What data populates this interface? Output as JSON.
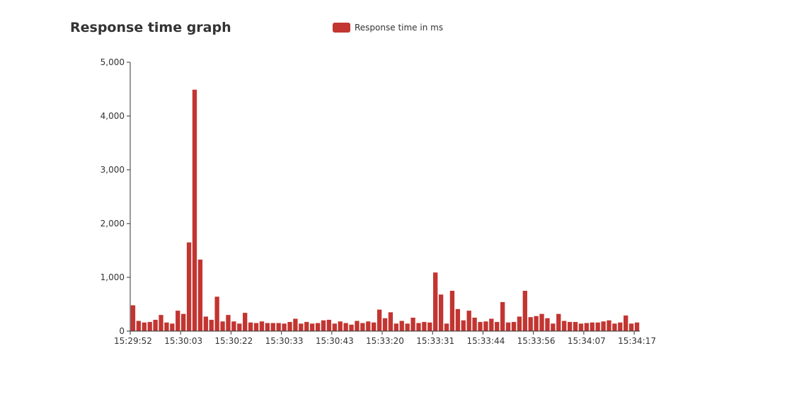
{
  "chart_data": {
    "type": "bar",
    "title": "Response time graph",
    "legend": {
      "placement": "top-center",
      "entries": [
        "Response time in ms"
      ]
    },
    "series": [
      {
        "name": "Response time in ms",
        "color": "#c23531",
        "values": [
          480,
          190,
          160,
          170,
          210,
          300,
          160,
          140,
          380,
          320,
          1650,
          4490,
          1330,
          270,
          210,
          640,
          180,
          300,
          180,
          140,
          340,
          160,
          150,
          180,
          150,
          150,
          150,
          140,
          170,
          230,
          140,
          170,
          140,
          150,
          200,
          210,
          140,
          180,
          150,
          120,
          190,
          150,
          180,
          160,
          400,
          240,
          350,
          140,
          190,
          140,
          250,
          150,
          170,
          160,
          1090,
          680,
          140,
          750,
          410,
          200,
          380,
          250,
          170,
          180,
          230,
          170,
          540,
          160,
          170,
          270,
          750,
          260,
          280,
          320,
          240,
          140,
          320,
          190,
          170,
          170,
          140,
          150,
          160,
          160,
          180,
          200,
          140,
          160,
          290,
          140,
          160
        ],
        "bar_count": 91
      }
    ],
    "xlabel": "",
    "ylabel": "",
    "ylim": [
      0,
      5000
    ],
    "yticks": [
      "0",
      "1,000",
      "2,000",
      "3,000",
      "4,000",
      "5,000"
    ],
    "ytick_values": [
      0,
      1000,
      2000,
      3000,
      4000,
      5000
    ],
    "xtick_labels": [
      "15:29:52",
      "15:30:03",
      "15:30:22",
      "15:30:33",
      "15:30:43",
      "15:33:20",
      "15:33:31",
      "15:33:44",
      "15:33:56",
      "15:34:07",
      "15:34:17"
    ],
    "grid": false
  }
}
